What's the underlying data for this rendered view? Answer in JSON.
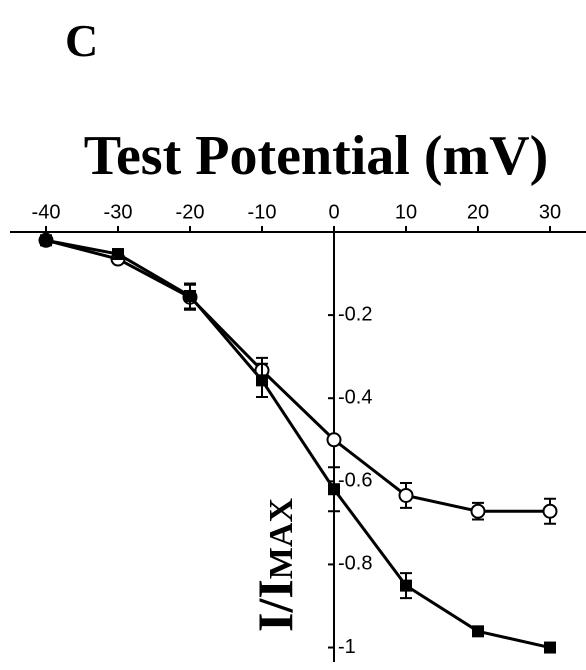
{
  "chart_data": {
    "type": "line",
    "panel_label": "C",
    "title": "Test Potential (mV)",
    "ylabel_main": "I/I",
    "ylabel_subscript": "MAX",
    "x": [
      -40,
      -30,
      -20,
      -10,
      0,
      10,
      20,
      30
    ],
    "series": [
      {
        "color": "#000000",
        "marker": "circle",
        "values": [
          -0.02,
          -0.065,
          -0.157,
          -0.333,
          -0.5,
          -0.634,
          -0.672,
          -0.672
        ],
        "errors": [
          null,
          null,
          0.03,
          0.03,
          null,
          0.03,
          0.02,
          0.03
        ]
      },
      {
        "color": "#000000",
        "marker": "square",
        "values": [
          -0.02,
          -0.053,
          -0.154,
          -0.357,
          -0.619,
          -0.851,
          -0.961,
          -1.0
        ],
        "errors": [
          null,
          null,
          0.03,
          0.04,
          0.053,
          0.03,
          null,
          null
        ]
      }
    ],
    "xlim": [
      -45,
      35
    ],
    "xticks": [
      -40,
      -30,
      -20,
      -10,
      0,
      10,
      20,
      30
    ],
    "ylim": [
      -1.03,
      0
    ],
    "yticks": [
      -0.2,
      -0.4,
      -0.6,
      -0.8,
      -1.0
    ]
  }
}
